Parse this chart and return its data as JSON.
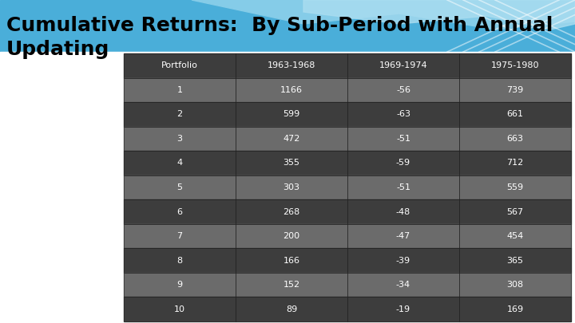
{
  "title_line1": "Cumulative Returns:  By Sub-Period with Annual",
  "title_line2": "Updating",
  "title_color": "#000000",
  "title_fontsize": 18,
  "bg_color": "#ffffff",
  "header_labels": [
    "Portfolio",
    "1963-1968",
    "1969-1974",
    "1975-1980"
  ],
  "rows": [
    [
      1,
      1166,
      -56,
      739
    ],
    [
      2,
      599,
      -63,
      661
    ],
    [
      3,
      472,
      -51,
      663
    ],
    [
      4,
      355,
      -59,
      712
    ],
    [
      5,
      303,
      -51,
      559
    ],
    [
      6,
      268,
      -48,
      567
    ],
    [
      7,
      200,
      -47,
      454
    ],
    [
      8,
      166,
      -39,
      365
    ],
    [
      9,
      152,
      -34,
      308
    ],
    [
      10,
      89,
      -19,
      169
    ]
  ],
  "header_bg": "#3d3d3d",
  "row_bg_dark": "#3d3d3d",
  "row_bg_light": "#6b6b6b",
  "text_color": "#ffffff",
  "sky_blue": "#4aaed9",
  "sky_light": "#85cce8",
  "sky_lighter": "#aaddf0"
}
